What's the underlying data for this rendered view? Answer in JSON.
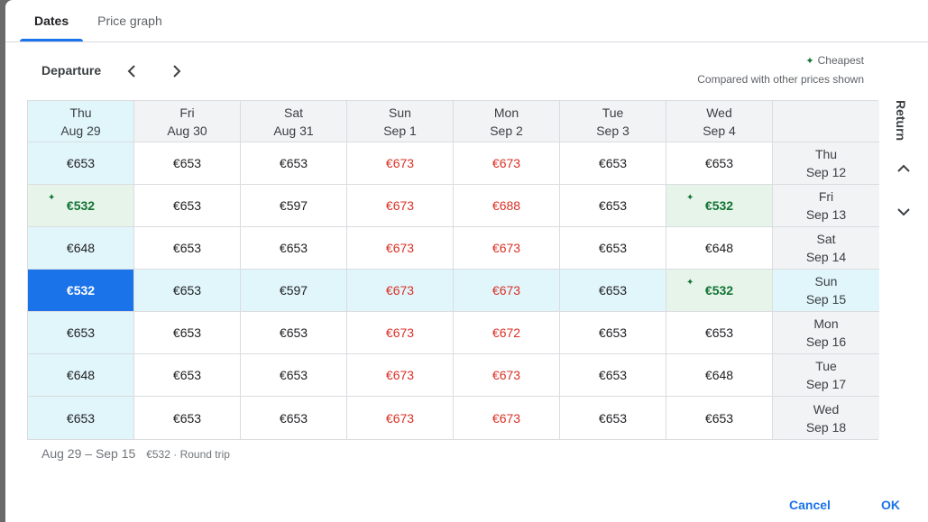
{
  "tabs": [
    {
      "label": "Dates",
      "active": true
    },
    {
      "label": "Price graph",
      "active": false
    }
  ],
  "departure_label": "Departure",
  "legend": {
    "cheapest_label": "Cheapest",
    "note": "Compared with other prices shown"
  },
  "return_label": "Return",
  "departure_dates": [
    {
      "day": "Thu",
      "date": "Aug 29"
    },
    {
      "day": "Fri",
      "date": "Aug 30"
    },
    {
      "day": "Sat",
      "date": "Aug 31"
    },
    {
      "day": "Sun",
      "date": "Sep 1"
    },
    {
      "day": "Mon",
      "date": "Sep 2"
    },
    {
      "day": "Tue",
      "date": "Sep 3"
    },
    {
      "day": "Wed",
      "date": "Sep 4"
    }
  ],
  "return_dates": [
    {
      "day": "Thu",
      "date": "Sep 12"
    },
    {
      "day": "Fri",
      "date": "Sep 13"
    },
    {
      "day": "Sat",
      "date": "Sep 14"
    },
    {
      "day": "Sun",
      "date": "Sep 15"
    },
    {
      "day": "Mon",
      "date": "Sep 16"
    },
    {
      "day": "Tue",
      "date": "Sep 17"
    },
    {
      "day": "Wed",
      "date": "Sep 18"
    }
  ],
  "prices": [
    [
      "€653",
      "€653",
      "€653",
      "€673",
      "€673",
      "€653",
      "€653"
    ],
    [
      "€532",
      "€653",
      "€597",
      "€673",
      "€688",
      "€653",
      "€532"
    ],
    [
      "€648",
      "€653",
      "€653",
      "€673",
      "€673",
      "€653",
      "€648"
    ],
    [
      "€532",
      "€653",
      "€597",
      "€673",
      "€673",
      "€653",
      "€532"
    ],
    [
      "€653",
      "€653",
      "€653",
      "€673",
      "€672",
      "€653",
      "€653"
    ],
    [
      "€648",
      "€653",
      "€653",
      "€673",
      "€673",
      "€653",
      "€648"
    ],
    [
      "€653",
      "€653",
      "€653",
      "€673",
      "€673",
      "€653",
      "€653"
    ]
  ],
  "colors": {
    "accent": "#1a73e8",
    "expensive": "#d93025",
    "cheap": "#137333"
  },
  "summary": {
    "dates": "Aug 29 – Sep 15",
    "detail": "€532 · Round trip"
  },
  "buttons": {
    "cancel": "Cancel",
    "ok": "OK"
  }
}
